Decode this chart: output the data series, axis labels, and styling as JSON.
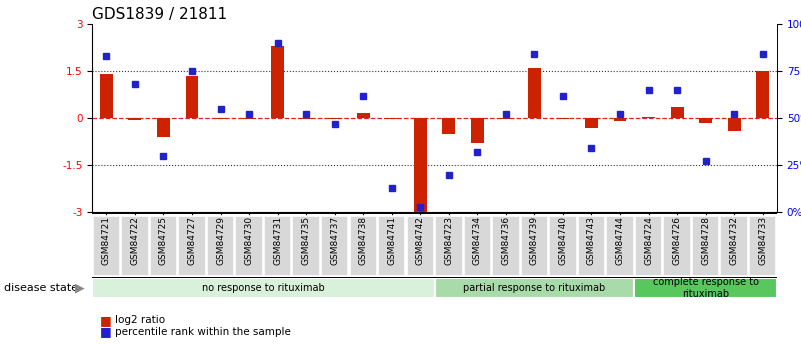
{
  "title": "GDS1839 / 21811",
  "samples": [
    "GSM84721",
    "GSM84722",
    "GSM84725",
    "GSM84727",
    "GSM84729",
    "GSM84730",
    "GSM84731",
    "GSM84735",
    "GSM84737",
    "GSM84738",
    "GSM84741",
    "GSM84742",
    "GSM84723",
    "GSM84734",
    "GSM84736",
    "GSM84739",
    "GSM84740",
    "GSM84743",
    "GSM84744",
    "GSM84724",
    "GSM84726",
    "GSM84728",
    "GSM84732",
    "GSM84733"
  ],
  "log2_ratio": [
    1.4,
    -0.05,
    -0.6,
    1.35,
    -0.02,
    -0.02,
    2.3,
    -0.02,
    -0.02,
    0.15,
    -0.02,
    -3.0,
    -0.5,
    -0.8,
    -0.02,
    1.6,
    -0.02,
    -0.3,
    -0.1,
    0.05,
    0.35,
    -0.15,
    -0.4,
    1.5
  ],
  "percentile": [
    83,
    68,
    30,
    75,
    55,
    52,
    90,
    52,
    47,
    62,
    13,
    3,
    20,
    32,
    52,
    84,
    62,
    34,
    52,
    65,
    65,
    27,
    52,
    84
  ],
  "groups": [
    {
      "label": "no response to rituximab",
      "start": 0,
      "end": 12,
      "color": "#d9f0da"
    },
    {
      "label": "partial response to rituximab",
      "start": 12,
      "end": 19,
      "color": "#a8dba9"
    },
    {
      "label": "complete response to\nrituximab",
      "start": 19,
      "end": 24,
      "color": "#57c75e"
    }
  ],
  "ylim": [
    -3,
    3
  ],
  "yticks_left": [
    -3,
    -1.5,
    0,
    1.5,
    3
  ],
  "yticks_right": [
    0,
    25,
    50,
    75,
    100
  ],
  "bar_color": "#cc2200",
  "dot_color": "#2222cc",
  "zero_line_color": "#dd2222",
  "hline_color": "#333333",
  "title_fontsize": 11,
  "tick_fontsize": 7.5,
  "label_fontsize": 7
}
